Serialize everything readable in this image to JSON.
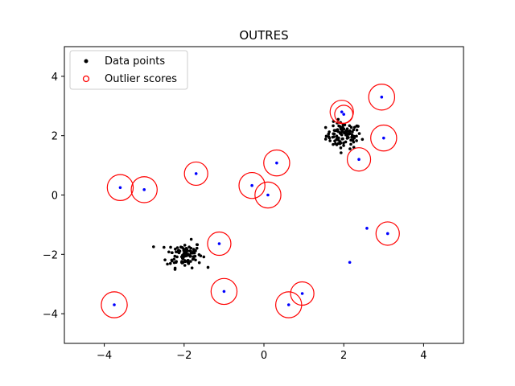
{
  "chart_data": {
    "type": "scatter",
    "title": "OUTRES",
    "xlabel": "",
    "ylabel": "",
    "xlim": [
      -5,
      5
    ],
    "ylim": [
      -5,
      5
    ],
    "x_ticks": [
      -4,
      -2,
      0,
      2,
      4
    ],
    "y_ticks": [
      -4,
      -2,
      0,
      2,
      4
    ],
    "x_tick_labels": [
      "−4",
      "−2",
      "0",
      "2",
      "4"
    ],
    "y_tick_labels": [
      "−4",
      "−2",
      "0",
      "2",
      "4"
    ],
    "grid": false,
    "legend_position": "upper-left",
    "legend": [
      {
        "label": "Data points",
        "marker": "filled-dot",
        "color": "#000000"
      },
      {
        "label": "Outlier scores",
        "marker": "open-circle",
        "color": "#ff0000"
      }
    ],
    "colors": {
      "inlier": "#000000",
      "outlier": "#0000ff",
      "score_circle": "#ff0000"
    },
    "clusters": [
      {
        "center": [
          2.0,
          2.0
        ],
        "spread": 0.22,
        "count": 100
      },
      {
        "center": [
          -2.0,
          -2.0
        ],
        "spread": 0.22,
        "count": 100
      }
    ],
    "outliers": [
      {
        "x": -3.6,
        "y": 0.25,
        "score": 1
      },
      {
        "x": -3.0,
        "y": 0.18,
        "score": 1
      },
      {
        "x": -1.7,
        "y": 0.72,
        "score": 0.9
      },
      {
        "x": -0.3,
        "y": 0.32,
        "score": 1
      },
      {
        "x": 0.1,
        "y": 0.0,
        "score": 1
      },
      {
        "x": 0.32,
        "y": 1.08,
        "score": 1
      },
      {
        "x": -1.12,
        "y": -1.64,
        "score": 0.9
      },
      {
        "x": -1.0,
        "y": -3.25,
        "score": 1
      },
      {
        "x": 0.62,
        "y": -3.7,
        "score": 1
      },
      {
        "x": 0.96,
        "y": -3.32,
        "score": 0.9
      },
      {
        "x": -3.75,
        "y": -3.7,
        "score": 1
      },
      {
        "x": 2.95,
        "y": 3.3,
        "score": 1
      },
      {
        "x": 1.95,
        "y": 2.8,
        "score": 0.9
      },
      {
        "x": 2.0,
        "y": 2.72,
        "score": 0.7
      },
      {
        "x": 3.0,
        "y": 1.92,
        "score": 1
      },
      {
        "x": 2.38,
        "y": 1.2,
        "score": 0.9
      },
      {
        "x": 3.1,
        "y": -1.3,
        "score": 0.9
      },
      {
        "x": 2.58,
        "y": -1.12,
        "score": 0
      },
      {
        "x": 2.15,
        "y": -2.27,
        "score": 0
      }
    ]
  }
}
